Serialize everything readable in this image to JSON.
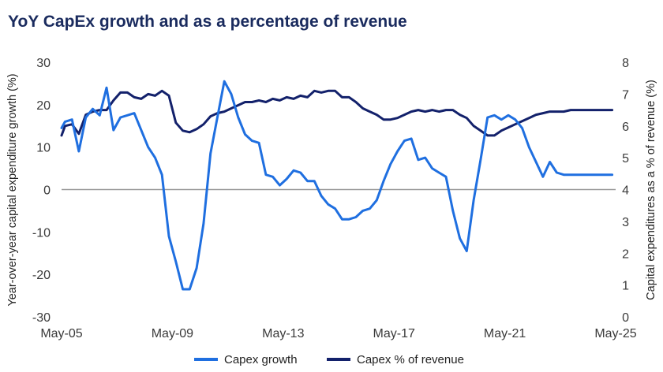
{
  "chart_data": {
    "type": "line",
    "title": "YoY CapEx growth and as a percentage of revenue",
    "xlabel": "",
    "ylabel": "Year-over-year capital expenditure growth (%)",
    "y2label": "Capital expenditures as a % of revenue (%)",
    "x_tick_labels": [
      "May-05",
      "May-09",
      "May-13",
      "May-17",
      "May-21",
      "May-25"
    ],
    "x_tick_values": [
      2005.375,
      2009.375,
      2013.375,
      2017.375,
      2021.375,
      2025.375
    ],
    "xlim": [
      2005.375,
      2025.375
    ],
    "ylim": [
      -30,
      30
    ],
    "y_ticks": [
      -30,
      -20,
      -10,
      0,
      10,
      20,
      30
    ],
    "y2lim": [
      0,
      8
    ],
    "y2_ticks": [
      0,
      1,
      2,
      3,
      4,
      5,
      6,
      7,
      8
    ],
    "zero_line": 0,
    "legend_position": "bottom",
    "series": [
      {
        "name": "Capex growth",
        "axis": "left",
        "color": "#1f6fe0",
        "x": [
          2005.375,
          2005.5,
          2005.75,
          2006.0,
          2006.25,
          2006.5,
          2006.75,
          2007.0,
          2007.25,
          2007.5,
          2007.75,
          2008.0,
          2008.25,
          2008.5,
          2008.75,
          2009.0,
          2009.25,
          2009.5,
          2009.75,
          2010.0,
          2010.25,
          2010.5,
          2010.75,
          2011.0,
          2011.25,
          2011.5,
          2011.75,
          2012.0,
          2012.25,
          2012.5,
          2012.75,
          2013.0,
          2013.25,
          2013.5,
          2013.75,
          2014.0,
          2014.25,
          2014.5,
          2014.75,
          2015.0,
          2015.25,
          2015.5,
          2015.75,
          2016.0,
          2016.25,
          2016.5,
          2016.75,
          2017.0,
          2017.25,
          2017.5,
          2017.75,
          2018.0,
          2018.25,
          2018.5,
          2018.75,
          2019.0,
          2019.25,
          2019.5,
          2019.75,
          2020.0,
          2020.25,
          2020.5,
          2020.75,
          2021.0,
          2021.25,
          2021.5,
          2021.75,
          2022.0,
          2022.25,
          2022.5,
          2022.75,
          2023.0,
          2023.25,
          2023.5,
          2023.75,
          2024.0,
          2024.25,
          2024.5,
          2024.75,
          2025.0,
          2025.25
        ],
        "values": [
          14.5,
          16.0,
          16.5,
          9.0,
          17.0,
          19.0,
          17.5,
          24.0,
          14.0,
          17.0,
          17.5,
          18.0,
          14.0,
          10.0,
          7.5,
          3.5,
          -11.0,
          -17.0,
          -23.5,
          -23.5,
          -18.5,
          -8.0,
          8.5,
          17.0,
          25.5,
          22.5,
          17.0,
          13.0,
          11.5,
          11.0,
          3.5,
          3.0,
          1.0,
          2.5,
          4.5,
          4.0,
          2.0,
          2.0,
          -1.5,
          -3.5,
          -4.5,
          -7.0,
          -7.0,
          -6.5,
          -5.0,
          -4.5,
          -2.5,
          2.0,
          6.0,
          9.0,
          11.5,
          12.0,
          7.0,
          7.5,
          5.0,
          4.0,
          3.0,
          -5.0,
          -11.5,
          -14.5,
          -2.5,
          7.0,
          17.0,
          17.5,
          16.5,
          17.5,
          16.5,
          14.5,
          10.0,
          6.5,
          3.0,
          6.5,
          4.0,
          3.5,
          3.5,
          3.5,
          3.5,
          3.5,
          3.5,
          3.5,
          3.5
        ]
      },
      {
        "name": "Capex % of revenue",
        "axis": "right",
        "color": "#13216b",
        "x": [
          2005.375,
          2005.5,
          2005.75,
          2006.0,
          2006.25,
          2006.5,
          2006.75,
          2007.0,
          2007.25,
          2007.5,
          2007.75,
          2008.0,
          2008.25,
          2008.5,
          2008.75,
          2009.0,
          2009.25,
          2009.5,
          2009.75,
          2010.0,
          2010.25,
          2010.5,
          2010.75,
          2011.0,
          2011.25,
          2011.5,
          2011.75,
          2012.0,
          2012.25,
          2012.5,
          2012.75,
          2013.0,
          2013.25,
          2013.5,
          2013.75,
          2014.0,
          2014.25,
          2014.5,
          2014.75,
          2015.0,
          2015.25,
          2015.5,
          2015.75,
          2016.0,
          2016.25,
          2016.5,
          2016.75,
          2017.0,
          2017.25,
          2017.5,
          2017.75,
          2018.0,
          2018.25,
          2018.5,
          2018.75,
          2019.0,
          2019.25,
          2019.5,
          2019.75,
          2020.0,
          2020.25,
          2020.5,
          2020.75,
          2021.0,
          2021.25,
          2021.5,
          2021.75,
          2022.0,
          2022.25,
          2022.5,
          2022.75,
          2023.0,
          2023.25,
          2023.5,
          2023.75,
          2024.0,
          2024.25,
          2024.5,
          2024.75,
          2025.0,
          2025.25
        ],
        "values": [
          5.7,
          6.0,
          6.05,
          5.75,
          6.35,
          6.45,
          6.5,
          6.5,
          6.8,
          7.05,
          7.05,
          6.9,
          6.85,
          7.0,
          6.95,
          7.1,
          6.95,
          6.1,
          5.85,
          5.8,
          5.9,
          6.05,
          6.3,
          6.4,
          6.45,
          6.55,
          6.65,
          6.75,
          6.75,
          6.8,
          6.75,
          6.85,
          6.8,
          6.9,
          6.85,
          6.95,
          6.9,
          7.1,
          7.05,
          7.1,
          7.1,
          6.9,
          6.9,
          6.75,
          6.55,
          6.45,
          6.35,
          6.2,
          6.2,
          6.25,
          6.35,
          6.45,
          6.5,
          6.45,
          6.5,
          6.45,
          6.5,
          6.5,
          6.35,
          6.25,
          6.0,
          5.85,
          5.7,
          5.7,
          5.85,
          5.95,
          6.05,
          6.15,
          6.25,
          6.35,
          6.4,
          6.45,
          6.45,
          6.45,
          6.5,
          6.5,
          6.5,
          6.5,
          6.5,
          6.5,
          6.5
        ]
      }
    ]
  }
}
